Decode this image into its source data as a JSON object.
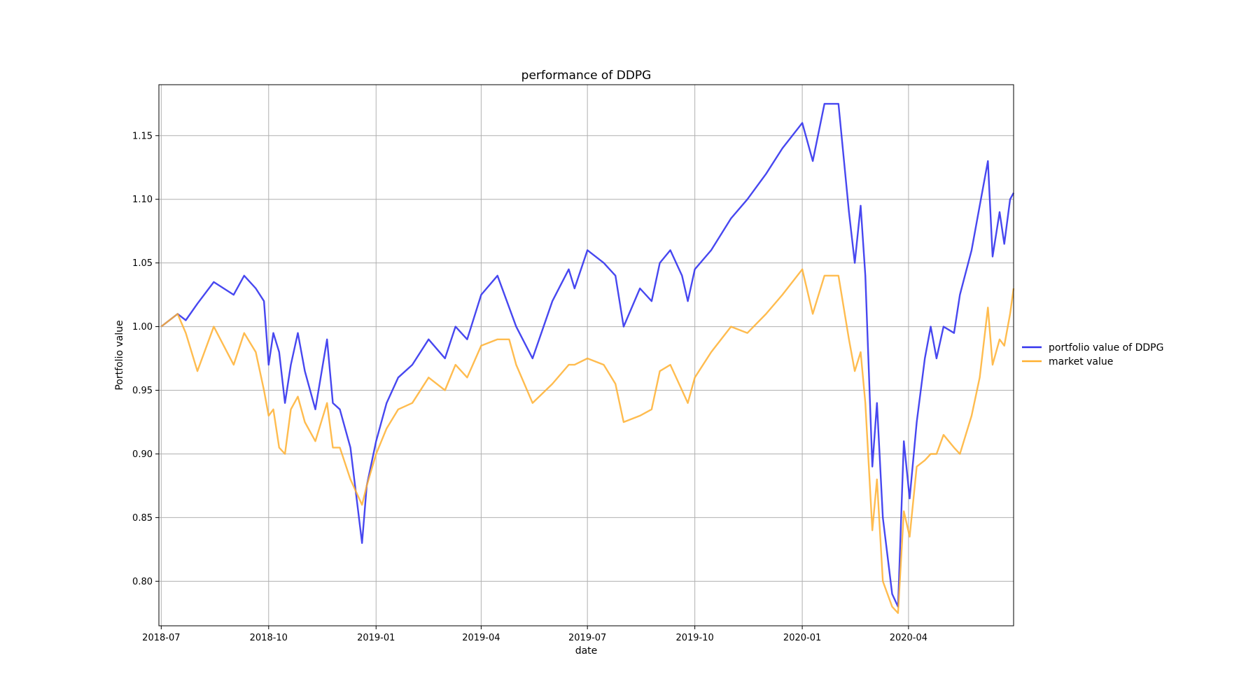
{
  "chart_data": {
    "type": "line",
    "title": "performance of DDPG",
    "xlabel": "date",
    "ylabel": "Portfolio value",
    "xlim": [
      "2018-06-29",
      "2020-06-30"
    ],
    "ylim": [
      0.765,
      1.19
    ],
    "x_ticks": [
      "2018-07",
      "2018-10",
      "2019-01",
      "2019-04",
      "2019-07",
      "2019-10",
      "2020-01",
      "2020-04"
    ],
    "y_ticks": [
      "0.80",
      "0.85",
      "0.90",
      "0.95",
      "1.00",
      "1.05",
      "1.10",
      "1.15"
    ],
    "grid": true,
    "legend_position": "right",
    "series": [
      {
        "name": "portfolio value of DDPG",
        "color": "#3333ee",
        "points": [
          [
            "2018-07-01",
            1.0
          ],
          [
            "2018-07-15",
            1.01
          ],
          [
            "2018-07-22",
            1.005
          ],
          [
            "2018-08-01",
            1.018
          ],
          [
            "2018-08-15",
            1.035
          ],
          [
            "2018-09-01",
            1.025
          ],
          [
            "2018-09-10",
            1.04
          ],
          [
            "2018-09-20",
            1.03
          ],
          [
            "2018-09-27",
            1.02
          ],
          [
            "2018-10-01",
            0.97
          ],
          [
            "2018-10-05",
            0.995
          ],
          [
            "2018-10-10",
            0.98
          ],
          [
            "2018-10-15",
            0.94
          ],
          [
            "2018-10-20",
            0.97
          ],
          [
            "2018-10-26",
            0.995
          ],
          [
            "2018-11-01",
            0.965
          ],
          [
            "2018-11-10",
            0.935
          ],
          [
            "2018-11-20",
            0.99
          ],
          [
            "2018-11-25",
            0.94
          ],
          [
            "2018-12-01",
            0.935
          ],
          [
            "2018-12-10",
            0.905
          ],
          [
            "2018-12-20",
            0.83
          ],
          [
            "2018-12-24",
            0.875
          ],
          [
            "2019-01-01",
            0.91
          ],
          [
            "2019-01-10",
            0.94
          ],
          [
            "2019-01-20",
            0.96
          ],
          [
            "2019-02-01",
            0.97
          ],
          [
            "2019-02-15",
            0.99
          ],
          [
            "2019-03-01",
            0.975
          ],
          [
            "2019-03-10",
            1.0
          ],
          [
            "2019-03-20",
            0.99
          ],
          [
            "2019-04-01",
            1.025
          ],
          [
            "2019-04-15",
            1.04
          ],
          [
            "2019-04-25",
            1.015
          ],
          [
            "2019-05-01",
            1.0
          ],
          [
            "2019-05-15",
            0.975
          ],
          [
            "2019-06-01",
            1.02
          ],
          [
            "2019-06-15",
            1.045
          ],
          [
            "2019-06-20",
            1.03
          ],
          [
            "2019-07-01",
            1.06
          ],
          [
            "2019-07-15",
            1.05
          ],
          [
            "2019-07-25",
            1.04
          ],
          [
            "2019-08-01",
            1.0
          ],
          [
            "2019-08-15",
            1.03
          ],
          [
            "2019-08-25",
            1.02
          ],
          [
            "2019-09-01",
            1.05
          ],
          [
            "2019-09-10",
            1.06
          ],
          [
            "2019-09-20",
            1.04
          ],
          [
            "2019-09-25",
            1.02
          ],
          [
            "2019-10-01",
            1.045
          ],
          [
            "2019-10-15",
            1.06
          ],
          [
            "2019-11-01",
            1.085
          ],
          [
            "2019-11-15",
            1.1
          ],
          [
            "2019-12-01",
            1.12
          ],
          [
            "2019-12-15",
            1.14
          ],
          [
            "2020-01-01",
            1.16
          ],
          [
            "2020-01-10",
            1.13
          ],
          [
            "2020-01-20",
            1.175
          ],
          [
            "2020-02-01",
            1.175
          ],
          [
            "2020-02-10",
            1.09
          ],
          [
            "2020-02-15",
            1.05
          ],
          [
            "2020-02-20",
            1.095
          ],
          [
            "2020-02-24",
            1.04
          ],
          [
            "2020-03-01",
            0.89
          ],
          [
            "2020-03-05",
            0.94
          ],
          [
            "2020-03-10",
            0.85
          ],
          [
            "2020-03-18",
            0.79
          ],
          [
            "2020-03-23",
            0.78
          ],
          [
            "2020-03-28",
            0.91
          ],
          [
            "2020-04-02",
            0.865
          ],
          [
            "2020-04-08",
            0.925
          ],
          [
            "2020-04-15",
            0.975
          ],
          [
            "2020-04-20",
            1.0
          ],
          [
            "2020-04-25",
            0.975
          ],
          [
            "2020-05-01",
            1.0
          ],
          [
            "2020-05-10",
            0.995
          ],
          [
            "2020-05-15",
            1.025
          ],
          [
            "2020-05-25",
            1.06
          ],
          [
            "2020-06-01",
            1.095
          ],
          [
            "2020-06-08",
            1.13
          ],
          [
            "2020-06-12",
            1.055
          ],
          [
            "2020-06-18",
            1.09
          ],
          [
            "2020-06-22",
            1.065
          ],
          [
            "2020-06-27",
            1.1
          ],
          [
            "2020-06-30",
            1.105
          ]
        ]
      },
      {
        "name": "market value",
        "color": "#ffb030",
        "points": [
          [
            "2018-07-01",
            1.0
          ],
          [
            "2018-07-15",
            1.01
          ],
          [
            "2018-07-22",
            0.995
          ],
          [
            "2018-08-01",
            0.965
          ],
          [
            "2018-08-15",
            1.0
          ],
          [
            "2018-09-01",
            0.97
          ],
          [
            "2018-09-10",
            0.995
          ],
          [
            "2018-09-20",
            0.98
          ],
          [
            "2018-09-27",
            0.95
          ],
          [
            "2018-10-01",
            0.93
          ],
          [
            "2018-10-05",
            0.935
          ],
          [
            "2018-10-10",
            0.905
          ],
          [
            "2018-10-15",
            0.9
          ],
          [
            "2018-10-20",
            0.935
          ],
          [
            "2018-10-26",
            0.945
          ],
          [
            "2018-11-01",
            0.925
          ],
          [
            "2018-11-10",
            0.91
          ],
          [
            "2018-11-20",
            0.94
          ],
          [
            "2018-11-25",
            0.905
          ],
          [
            "2018-12-01",
            0.905
          ],
          [
            "2018-12-10",
            0.88
          ],
          [
            "2018-12-20",
            0.86
          ],
          [
            "2018-12-24",
            0.875
          ],
          [
            "2019-01-01",
            0.9
          ],
          [
            "2019-01-10",
            0.92
          ],
          [
            "2019-01-20",
            0.935
          ],
          [
            "2019-02-01",
            0.94
          ],
          [
            "2019-02-15",
            0.96
          ],
          [
            "2019-03-01",
            0.95
          ],
          [
            "2019-03-10",
            0.97
          ],
          [
            "2019-03-20",
            0.96
          ],
          [
            "2019-04-01",
            0.985
          ],
          [
            "2019-04-15",
            0.99
          ],
          [
            "2019-04-25",
            0.99
          ],
          [
            "2019-05-01",
            0.97
          ],
          [
            "2019-05-15",
            0.94
          ],
          [
            "2019-06-01",
            0.955
          ],
          [
            "2019-06-15",
            0.97
          ],
          [
            "2019-06-20",
            0.97
          ],
          [
            "2019-07-01",
            0.975
          ],
          [
            "2019-07-15",
            0.97
          ],
          [
            "2019-07-25",
            0.955
          ],
          [
            "2019-08-01",
            0.925
          ],
          [
            "2019-08-15",
            0.93
          ],
          [
            "2019-08-25",
            0.935
          ],
          [
            "2019-09-01",
            0.965
          ],
          [
            "2019-09-10",
            0.97
          ],
          [
            "2019-09-20",
            0.95
          ],
          [
            "2019-09-25",
            0.94
          ],
          [
            "2019-10-01",
            0.96
          ],
          [
            "2019-10-15",
            0.98
          ],
          [
            "2019-11-01",
            1.0
          ],
          [
            "2019-11-15",
            0.995
          ],
          [
            "2019-12-01",
            1.01
          ],
          [
            "2019-12-15",
            1.025
          ],
          [
            "2020-01-01",
            1.045
          ],
          [
            "2020-01-10",
            1.01
          ],
          [
            "2020-01-20",
            1.04
          ],
          [
            "2020-02-01",
            1.04
          ],
          [
            "2020-02-10",
            0.99
          ],
          [
            "2020-02-15",
            0.965
          ],
          [
            "2020-02-20",
            0.98
          ],
          [
            "2020-02-24",
            0.94
          ],
          [
            "2020-03-01",
            0.84
          ],
          [
            "2020-03-05",
            0.88
          ],
          [
            "2020-03-10",
            0.8
          ],
          [
            "2020-03-18",
            0.78
          ],
          [
            "2020-03-23",
            0.775
          ],
          [
            "2020-03-28",
            0.855
          ],
          [
            "2020-04-02",
            0.835
          ],
          [
            "2020-04-08",
            0.89
          ],
          [
            "2020-04-15",
            0.895
          ],
          [
            "2020-04-20",
            0.9
          ],
          [
            "2020-04-25",
            0.9
          ],
          [
            "2020-05-01",
            0.915
          ],
          [
            "2020-05-10",
            0.905
          ],
          [
            "2020-05-15",
            0.9
          ],
          [
            "2020-05-25",
            0.93
          ],
          [
            "2020-06-01",
            0.96
          ],
          [
            "2020-06-08",
            1.015
          ],
          [
            "2020-06-12",
            0.97
          ],
          [
            "2020-06-18",
            0.99
          ],
          [
            "2020-06-22",
            0.985
          ],
          [
            "2020-06-27",
            1.01
          ],
          [
            "2020-06-30",
            1.03
          ]
        ]
      }
    ]
  }
}
